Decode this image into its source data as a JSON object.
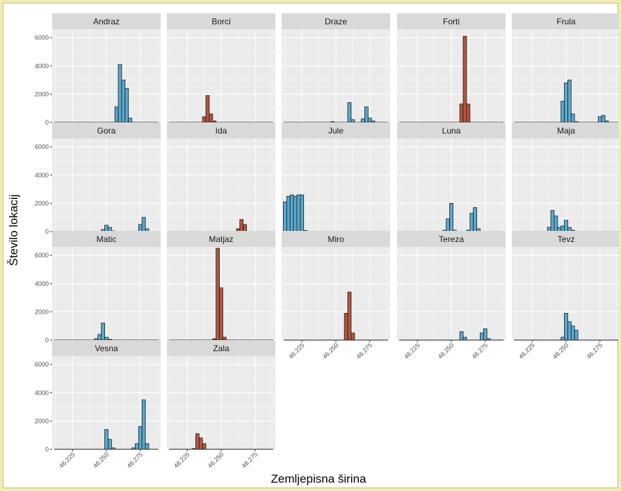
{
  "chart_data": {
    "type": "bar",
    "subtype": "faceted-histogram",
    "xlabel": "Zemljepisna širina",
    "ylabel": "Število lokacij",
    "xticks": [
      "46.225",
      "46.250",
      "46.275"
    ],
    "xtick_values": [
      46.225,
      46.25,
      46.275
    ],
    "yticks": [
      "0",
      "2000",
      "4000",
      "6000"
    ],
    "ytick_values": [
      0,
      2000,
      4000,
      6000
    ],
    "xlim": [
      46.21,
      46.29
    ],
    "ylim": [
      0,
      6600
    ],
    "bin_width": 0.0025,
    "grid": true,
    "legend": "none",
    "colors": {
      "blue": "#5aa9cf",
      "red": "#b5563e",
      "outline": "#1a1a1a",
      "panel_bg": "#ebebeb",
      "strip_bg": "#d9d9d9",
      "grid": "#ffffff"
    },
    "facets": [
      {
        "name": "Andraz",
        "color": "blue",
        "bars": [
          [
            46.2575,
            1100
          ],
          [
            46.26,
            4100
          ],
          [
            46.2625,
            3000
          ],
          [
            46.265,
            2400
          ],
          [
            46.2675,
            300
          ]
        ]
      },
      {
        "name": "Borci",
        "color": "red",
        "bars": [
          [
            46.2375,
            400
          ],
          [
            46.24,
            1900
          ],
          [
            46.2425,
            600
          ],
          [
            46.245,
            100
          ]
        ]
      },
      {
        "name": "Draze",
        "color": "blue",
        "bars": [
          [
            46.2475,
            50
          ],
          [
            46.26,
            1400
          ],
          [
            46.2625,
            200
          ],
          [
            46.27,
            250
          ],
          [
            46.2725,
            1100
          ],
          [
            46.275,
            300
          ],
          [
            46.2775,
            100
          ]
        ]
      },
      {
        "name": "Forti",
        "color": "red",
        "bars": [
          [
            46.2575,
            1300
          ],
          [
            46.26,
            6100
          ],
          [
            46.2625,
            1300
          ]
        ]
      },
      {
        "name": "Frula",
        "color": "blue",
        "bars": [
          [
            46.2475,
            1500
          ],
          [
            46.25,
            2800
          ],
          [
            46.2525,
            3000
          ],
          [
            46.255,
            600
          ],
          [
            46.2575,
            50
          ],
          [
            46.275,
            400
          ],
          [
            46.2775,
            500
          ],
          [
            46.28,
            100
          ]
        ]
      },
      {
        "name": "Gora",
        "color": "blue",
        "bars": [
          [
            46.2475,
            150
          ],
          [
            46.25,
            450
          ],
          [
            46.2525,
            300
          ],
          [
            46.255,
            50
          ],
          [
            46.275,
            500
          ],
          [
            46.2775,
            1000
          ],
          [
            46.28,
            200
          ]
        ]
      },
      {
        "name": "Ida",
        "color": "red",
        "bars": [
          [
            46.2625,
            200
          ],
          [
            46.265,
            850
          ],
          [
            46.2675,
            500
          ]
        ]
      },
      {
        "name": "Jule",
        "color": "blue",
        "bars": [
          [
            46.2125,
            2100
          ],
          [
            46.215,
            2500
          ],
          [
            46.2175,
            2600
          ],
          [
            46.22,
            2500
          ],
          [
            46.2225,
            2600
          ],
          [
            46.225,
            2600
          ],
          [
            46.2275,
            80
          ]
        ]
      },
      {
        "name": "Luna",
        "color": "blue",
        "bars": [
          [
            46.245,
            100
          ],
          [
            46.2475,
            900
          ],
          [
            46.25,
            2000
          ],
          [
            46.2525,
            100
          ],
          [
            46.2575,
            30
          ],
          [
            46.2625,
            100
          ],
          [
            46.265,
            1300
          ],
          [
            46.2675,
            1700
          ],
          [
            46.27,
            200
          ]
        ]
      },
      {
        "name": "Maja",
        "color": "blue",
        "bars": [
          [
            46.2375,
            300
          ],
          [
            46.24,
            1500
          ],
          [
            46.2425,
            1100
          ],
          [
            46.245,
            300
          ],
          [
            46.2475,
            400
          ],
          [
            46.25,
            800
          ],
          [
            46.2525,
            300
          ],
          [
            46.255,
            100
          ],
          [
            46.265,
            30
          ]
        ]
      },
      {
        "name": "Matic",
        "color": "blue",
        "bars": [
          [
            46.2425,
            100
          ],
          [
            46.245,
            400
          ],
          [
            46.2475,
            1200
          ],
          [
            46.25,
            200
          ],
          [
            46.2525,
            50
          ]
        ]
      },
      {
        "name": "Matjaz",
        "color": "red",
        "bars": [
          [
            46.245,
            100
          ],
          [
            46.2475,
            6500
          ],
          [
            46.25,
            3700
          ],
          [
            46.2525,
            200
          ]
        ]
      },
      {
        "name": "Miro",
        "color": "red",
        "bars": [
          [
            46.2575,
            1900
          ],
          [
            46.26,
            3400
          ],
          [
            46.2625,
            500
          ]
        ]
      },
      {
        "name": "Tereza",
        "color": "blue",
        "bars": [
          [
            46.2575,
            600
          ],
          [
            46.26,
            200
          ],
          [
            46.2725,
            500
          ],
          [
            46.275,
            800
          ],
          [
            46.2775,
            100
          ]
        ]
      },
      {
        "name": "Tevz",
        "color": "blue",
        "bars": [
          [
            46.2475,
            200
          ],
          [
            46.25,
            1900
          ],
          [
            46.2525,
            1300
          ],
          [
            46.255,
            1000
          ],
          [
            46.2575,
            700
          ]
        ]
      },
      {
        "name": "Vesna",
        "color": "blue",
        "bars": [
          [
            46.25,
            1400
          ],
          [
            46.2525,
            700
          ],
          [
            46.255,
            100
          ],
          [
            46.27,
            100
          ],
          [
            46.2725,
            400
          ],
          [
            46.275,
            1600
          ],
          [
            46.2775,
            3500
          ],
          [
            46.28,
            400
          ]
        ]
      },
      {
        "name": "Zala",
        "color": "red",
        "bars": [
          [
            46.23,
            50
          ],
          [
            46.2325,
            1100
          ],
          [
            46.235,
            800
          ],
          [
            46.2375,
            400
          ]
        ]
      }
    ]
  }
}
